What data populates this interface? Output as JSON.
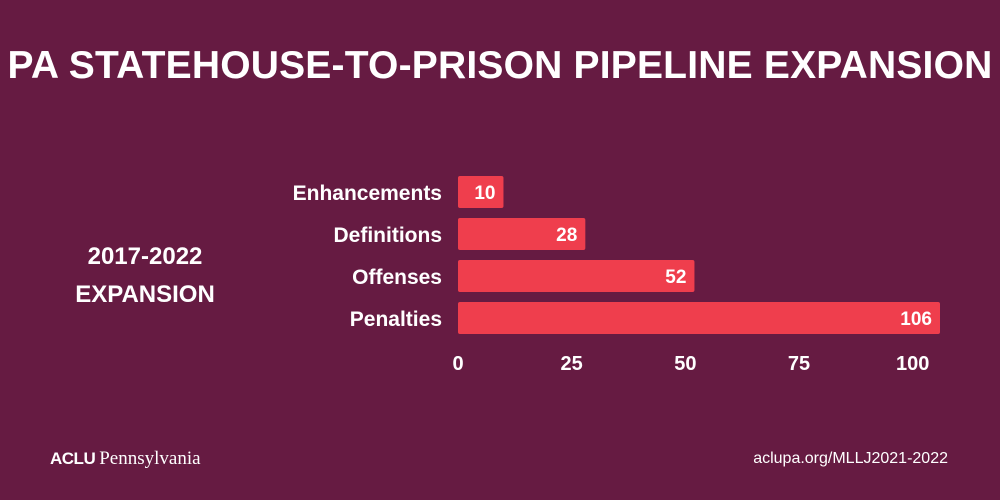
{
  "title": "PA STATEHOUSE-TO-PRISON PIPELINE EXPANSION",
  "side_label": {
    "line1": "2017-2022",
    "line2": "EXPANSION"
  },
  "footer": {
    "logo_aclu": "ACLU",
    "logo_state": "Pennsylvania",
    "url": "aclupa.org/MLLJ2021-2022"
  },
  "colors": {
    "background": "#661b42",
    "bar": "#ef3e4d",
    "text": "#ffffff"
  },
  "chart_data": {
    "type": "bar",
    "orientation": "horizontal",
    "categories": [
      "Enhancements",
      "Definitions",
      "Offenses",
      "Penalties"
    ],
    "values": [
      10,
      28,
      52,
      106
    ],
    "x_ticks": [
      0,
      25,
      50,
      75,
      100
    ],
    "xlim": [
      0,
      106
    ],
    "data_labels": true,
    "grid": false,
    "legend": "none"
  }
}
